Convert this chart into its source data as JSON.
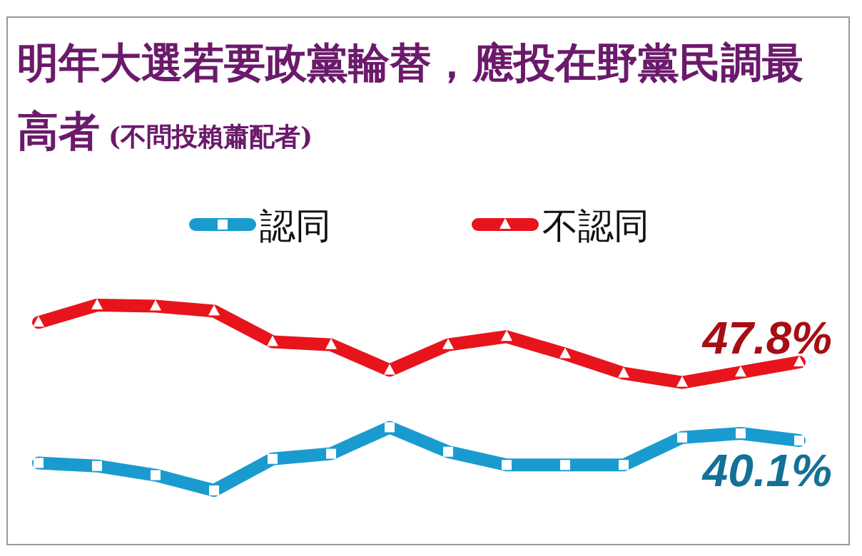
{
  "chart_data": {
    "type": "line",
    "title": "明年大選若要政黨輪替，應投在野黨民調最高者",
    "subtitle": "(不問投賴蕭配者)",
    "legend": "top",
    "categories": [
      null,
      null,
      null,
      null,
      null,
      null,
      null,
      null,
      null,
      null,
      null,
      null,
      null,
      null
    ],
    "series": [
      {
        "name": "認同",
        "color": "#1a9bd0",
        "marker": "square",
        "values": [
          37.9,
          37.6,
          36.7,
          35.2,
          38.3,
          38.8,
          41.4,
          39.0,
          37.7,
          37.7,
          37.7,
          40.4,
          40.8,
          40.1
        ],
        "value_labels": [
          null,
          null,
          null,
          null,
          null,
          null,
          null,
          null,
          null,
          null,
          null,
          null,
          null,
          "40.1%"
        ]
      },
      {
        "name": "不認同",
        "color": "#e8141c",
        "marker": "triangle",
        "values": [
          51.7,
          53.4,
          53.3,
          52.8,
          49.8,
          49.5,
          47.0,
          49.5,
          50.3,
          48.6,
          46.7,
          45.8,
          46.8,
          47.8
        ],
        "value_labels": [
          null,
          null,
          null,
          null,
          null,
          null,
          null,
          null,
          null,
          null,
          null,
          null,
          null,
          "47.8%"
        ]
      }
    ]
  }
}
